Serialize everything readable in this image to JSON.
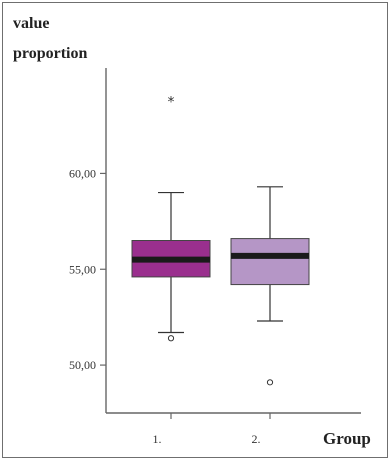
{
  "chart_data": {
    "type": "boxplot",
    "title": "",
    "ylabel_lines": [
      "value",
      "proportion"
    ],
    "xlabel": "Group",
    "ylim": [
      47.5,
      65.5
    ],
    "yticks": [
      50,
      55,
      60
    ],
    "ytick_labels": [
      "50,00",
      "55,00",
      "60,00"
    ],
    "categories": [
      "1.",
      "2."
    ],
    "series": [
      {
        "category": "1.",
        "min": 51.7,
        "q1": 54.6,
        "median": 55.5,
        "q3": 56.5,
        "max": 59.0,
        "outliers": [
          51.4
        ],
        "extremes": [
          63.8
        ],
        "color": "#9a2f8e"
      },
      {
        "category": "2.",
        "min": 52.3,
        "q1": 54.2,
        "median": 55.7,
        "q3": 56.6,
        "max": 59.3,
        "outliers": [
          49.1
        ],
        "extremes": [],
        "color": "#b596c6"
      }
    ],
    "grid": false,
    "legend": "none"
  },
  "colors": {
    "axis": "#666666",
    "median": "#1a1a1a",
    "whisker": "#333333"
  }
}
